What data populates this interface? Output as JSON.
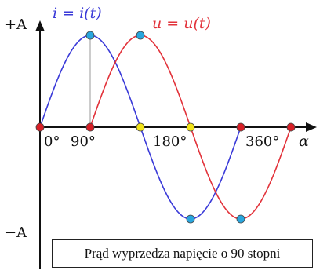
{
  "axis": {
    "y_top_label": "+A",
    "y_bottom_label": "−A",
    "x_label": "α"
  },
  "ticks": {
    "t0": "0°",
    "t90": "90°",
    "t180": "180°",
    "t360": "360°"
  },
  "series": {
    "current_label": "i = i(t)",
    "voltage_label": "u = u(t)"
  },
  "colors": {
    "current": "#3a3ad8",
    "voltage": "#e2323a",
    "axis": "#111111",
    "guide": "#9a9a9a",
    "peak_dot": "#29a6de",
    "crossing_dot": "#f2e418",
    "zero_dot": "#d81f26"
  },
  "caption": "Prąd wyprzedza napięcie o 90 stopni"
}
